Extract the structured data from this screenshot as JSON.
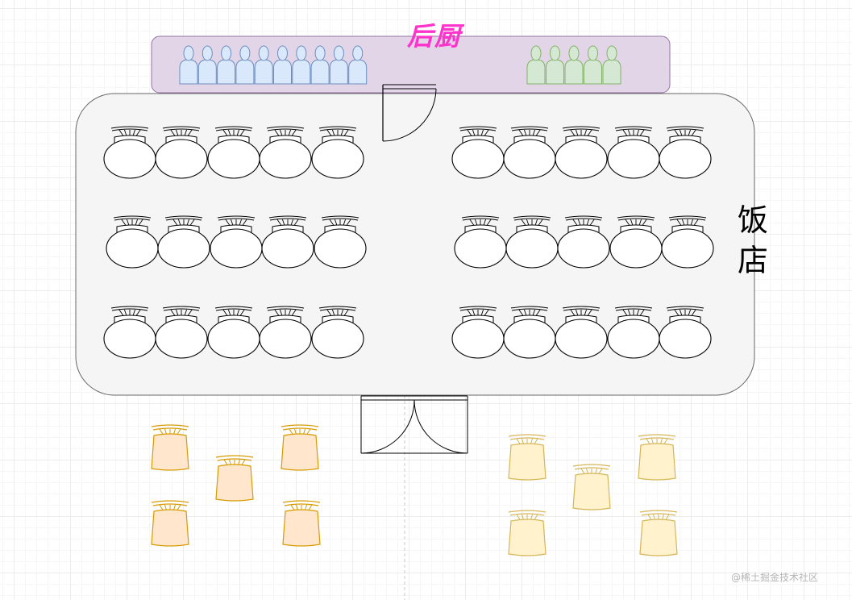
{
  "kitchen": {
    "label": "后厨",
    "fill": "#e1d5e7",
    "stroke": "#9673a6",
    "label_color": "#ff33cc",
    "blue_staff_count": 10,
    "green_staff_count": 5,
    "blue_staff_fill": "#dae8fc",
    "blue_staff_stroke": "#6c8ebf",
    "green_staff_fill": "#d5e8d4",
    "green_staff_stroke": "#82b366"
  },
  "restaurant": {
    "label": "饭店",
    "fill": "#f5f5f5",
    "stroke": "#666666",
    "table_groups": 6,
    "tables_per_group": 5
  },
  "waiting_area": {
    "left_chair_fill": "#ffe6cc",
    "left_chair_stroke": "#d79b00",
    "right_chair_fill": "#fff2cc",
    "right_chair_stroke": "#d6b656",
    "left_chair_count": 5,
    "right_chair_count": 5
  },
  "icons": {
    "staff": "person-icon",
    "table": "round-table-with-chair-icon",
    "chair": "chair-icon",
    "door": "door-icon"
  },
  "watermark": "@稀土掘金技术社区"
}
